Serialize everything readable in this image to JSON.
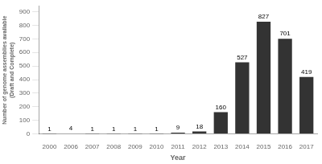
{
  "chart_data": {
    "type": "bar",
    "categories": [
      "2000",
      "2006",
      "2007",
      "2008",
      "2009",
      "2010",
      "2011",
      "2012",
      "2013",
      "2014",
      "2015",
      "2016",
      "2017"
    ],
    "values": [
      1,
      4,
      1,
      1,
      1,
      1,
      9,
      18,
      160,
      527,
      827,
      701,
      419
    ],
    "color": "#333333",
    "xlabel": "Year",
    "ylabel": "Number of genome assemblies available\n(Draft and Complete)",
    "ylim": [
      0,
      940
    ],
    "yticks": [
      0,
      100,
      200,
      300,
      400,
      500,
      600,
      700,
      800,
      900
    ],
    "grid": false,
    "data_labels": true
  }
}
